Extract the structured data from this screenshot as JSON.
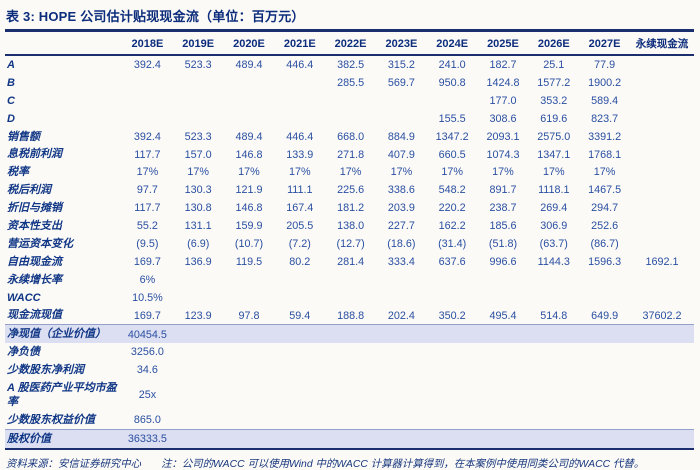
{
  "title": "表 3: HOPE 公司估计贴现现金流（单位：百万元）",
  "table": {
    "columns": [
      "2018E",
      "2019E",
      "2020E",
      "2021E",
      "2022E",
      "2023E",
      "2024E",
      "2025E",
      "2026E",
      "2027E"
    ],
    "perpetual_column": "永续现金流",
    "rows": [
      {
        "label": "A",
        "values": [
          "392.4",
          "523.3",
          "489.4",
          "446.4",
          "382.5",
          "315.2",
          "241.0",
          "182.7",
          "25.1",
          "77.9",
          ""
        ],
        "highlight": false
      },
      {
        "label": "B",
        "values": [
          "",
          "",
          "",
          "",
          "285.5",
          "569.7",
          "950.8",
          "1424.8",
          "1577.2",
          "1900.2",
          ""
        ],
        "highlight": false
      },
      {
        "label": "C",
        "values": [
          "",
          "",
          "",
          "",
          "",
          "",
          "",
          "177.0",
          "353.2",
          "589.4",
          ""
        ],
        "highlight": false
      },
      {
        "label": "D",
        "values": [
          "",
          "",
          "",
          "",
          "",
          "",
          "155.5",
          "308.6",
          "619.6",
          "823.7",
          ""
        ],
        "highlight": false
      },
      {
        "label": "销售额",
        "values": [
          "392.4",
          "523.3",
          "489.4",
          "446.4",
          "668.0",
          "884.9",
          "1347.2",
          "2093.1",
          "2575.0",
          "3391.2",
          ""
        ],
        "highlight": false
      },
      {
        "label": "息税前利润",
        "values": [
          "117.7",
          "157.0",
          "146.8",
          "133.9",
          "271.8",
          "407.9",
          "660.5",
          "1074.3",
          "1347.1",
          "1768.1",
          ""
        ],
        "highlight": false
      },
      {
        "label": "税率",
        "values": [
          "17%",
          "17%",
          "17%",
          "17%",
          "17%",
          "17%",
          "17%",
          "17%",
          "17%",
          "17%",
          ""
        ],
        "highlight": false
      },
      {
        "label": "税后利润",
        "values": [
          "97.7",
          "130.3",
          "121.9",
          "111.1",
          "225.6",
          "338.6",
          "548.2",
          "891.7",
          "1118.1",
          "1467.5",
          ""
        ],
        "highlight": false
      },
      {
        "label": "折旧与摊销",
        "values": [
          "117.7",
          "130.8",
          "146.8",
          "167.4",
          "181.2",
          "203.9",
          "220.2",
          "238.7",
          "269.4",
          "294.7",
          ""
        ],
        "highlight": false
      },
      {
        "label": "资本性支出",
        "values": [
          "55.2",
          "131.1",
          "159.9",
          "205.5",
          "138.0",
          "227.7",
          "162.2",
          "185.6",
          "306.9",
          "252.6",
          ""
        ],
        "highlight": false
      },
      {
        "label": "营运资本变化",
        "values": [
          "(9.5)",
          "(6.9)",
          "(10.7)",
          "(7.2)",
          "(12.7)",
          "(18.6)",
          "(31.4)",
          "(51.8)",
          "(63.7)",
          "(86.7)",
          ""
        ],
        "highlight": false
      },
      {
        "label": "自由现金流",
        "values": [
          "169.7",
          "136.9",
          "119.5",
          "80.2",
          "281.4",
          "333.4",
          "637.6",
          "996.6",
          "1144.3",
          "1596.3",
          "1692.1"
        ],
        "highlight": false
      },
      {
        "label": "永续增长率",
        "values": [
          "6%",
          "",
          "",
          "",
          "",
          "",
          "",
          "",
          "",
          "",
          ""
        ],
        "highlight": false
      },
      {
        "label": "WACC",
        "values": [
          "10.5%",
          "",
          "",
          "",
          "",
          "",
          "",
          "",
          "",
          "",
          ""
        ],
        "highlight": false
      },
      {
        "label": "现金流现值",
        "values": [
          "169.7",
          "123.9",
          "97.8",
          "59.4",
          "188.8",
          "202.4",
          "350.2",
          "495.4",
          "514.8",
          "649.9",
          "37602.2"
        ],
        "highlight": false
      },
      {
        "label": "净现值（企业价值）",
        "values": [
          "40454.5",
          "",
          "",
          "",
          "",
          "",
          "",
          "",
          "",
          "",
          ""
        ],
        "highlight": true
      },
      {
        "label": "净负债",
        "values": [
          "3256.0",
          "",
          "",
          "",
          "",
          "",
          "",
          "",
          "",
          "",
          ""
        ],
        "highlight": false
      },
      {
        "label": "少数股东净利润",
        "values": [
          "34.6",
          "",
          "",
          "",
          "",
          "",
          "",
          "",
          "",
          "",
          ""
        ],
        "highlight": false
      },
      {
        "label": "A 股医药产业平均市盈率",
        "values": [
          "25x",
          "",
          "",
          "",
          "",
          "",
          "",
          "",
          "",
          "",
          ""
        ],
        "highlight": false
      },
      {
        "label": "少数股东权益价值",
        "values": [
          "865.0",
          "",
          "",
          "",
          "",
          "",
          "",
          "",
          "",
          "",
          ""
        ],
        "highlight": false
      },
      {
        "label": "股权价值",
        "values": [
          "36333.5",
          "",
          "",
          "",
          "",
          "",
          "",
          "",
          "",
          "",
          ""
        ],
        "highlight": true
      }
    ]
  },
  "footer": {
    "source": "资料来源：安信证券研究中心",
    "note": "注：公司的WACC 可以使用Wind 中的WACC 计算器计算得到，在本案例中使用同类公司的WACC 代替。"
  },
  "colors": {
    "accent_navy": "#1b2f6e",
    "text_navy": "#17377e",
    "highlight_bg": "#dbdff1"
  }
}
